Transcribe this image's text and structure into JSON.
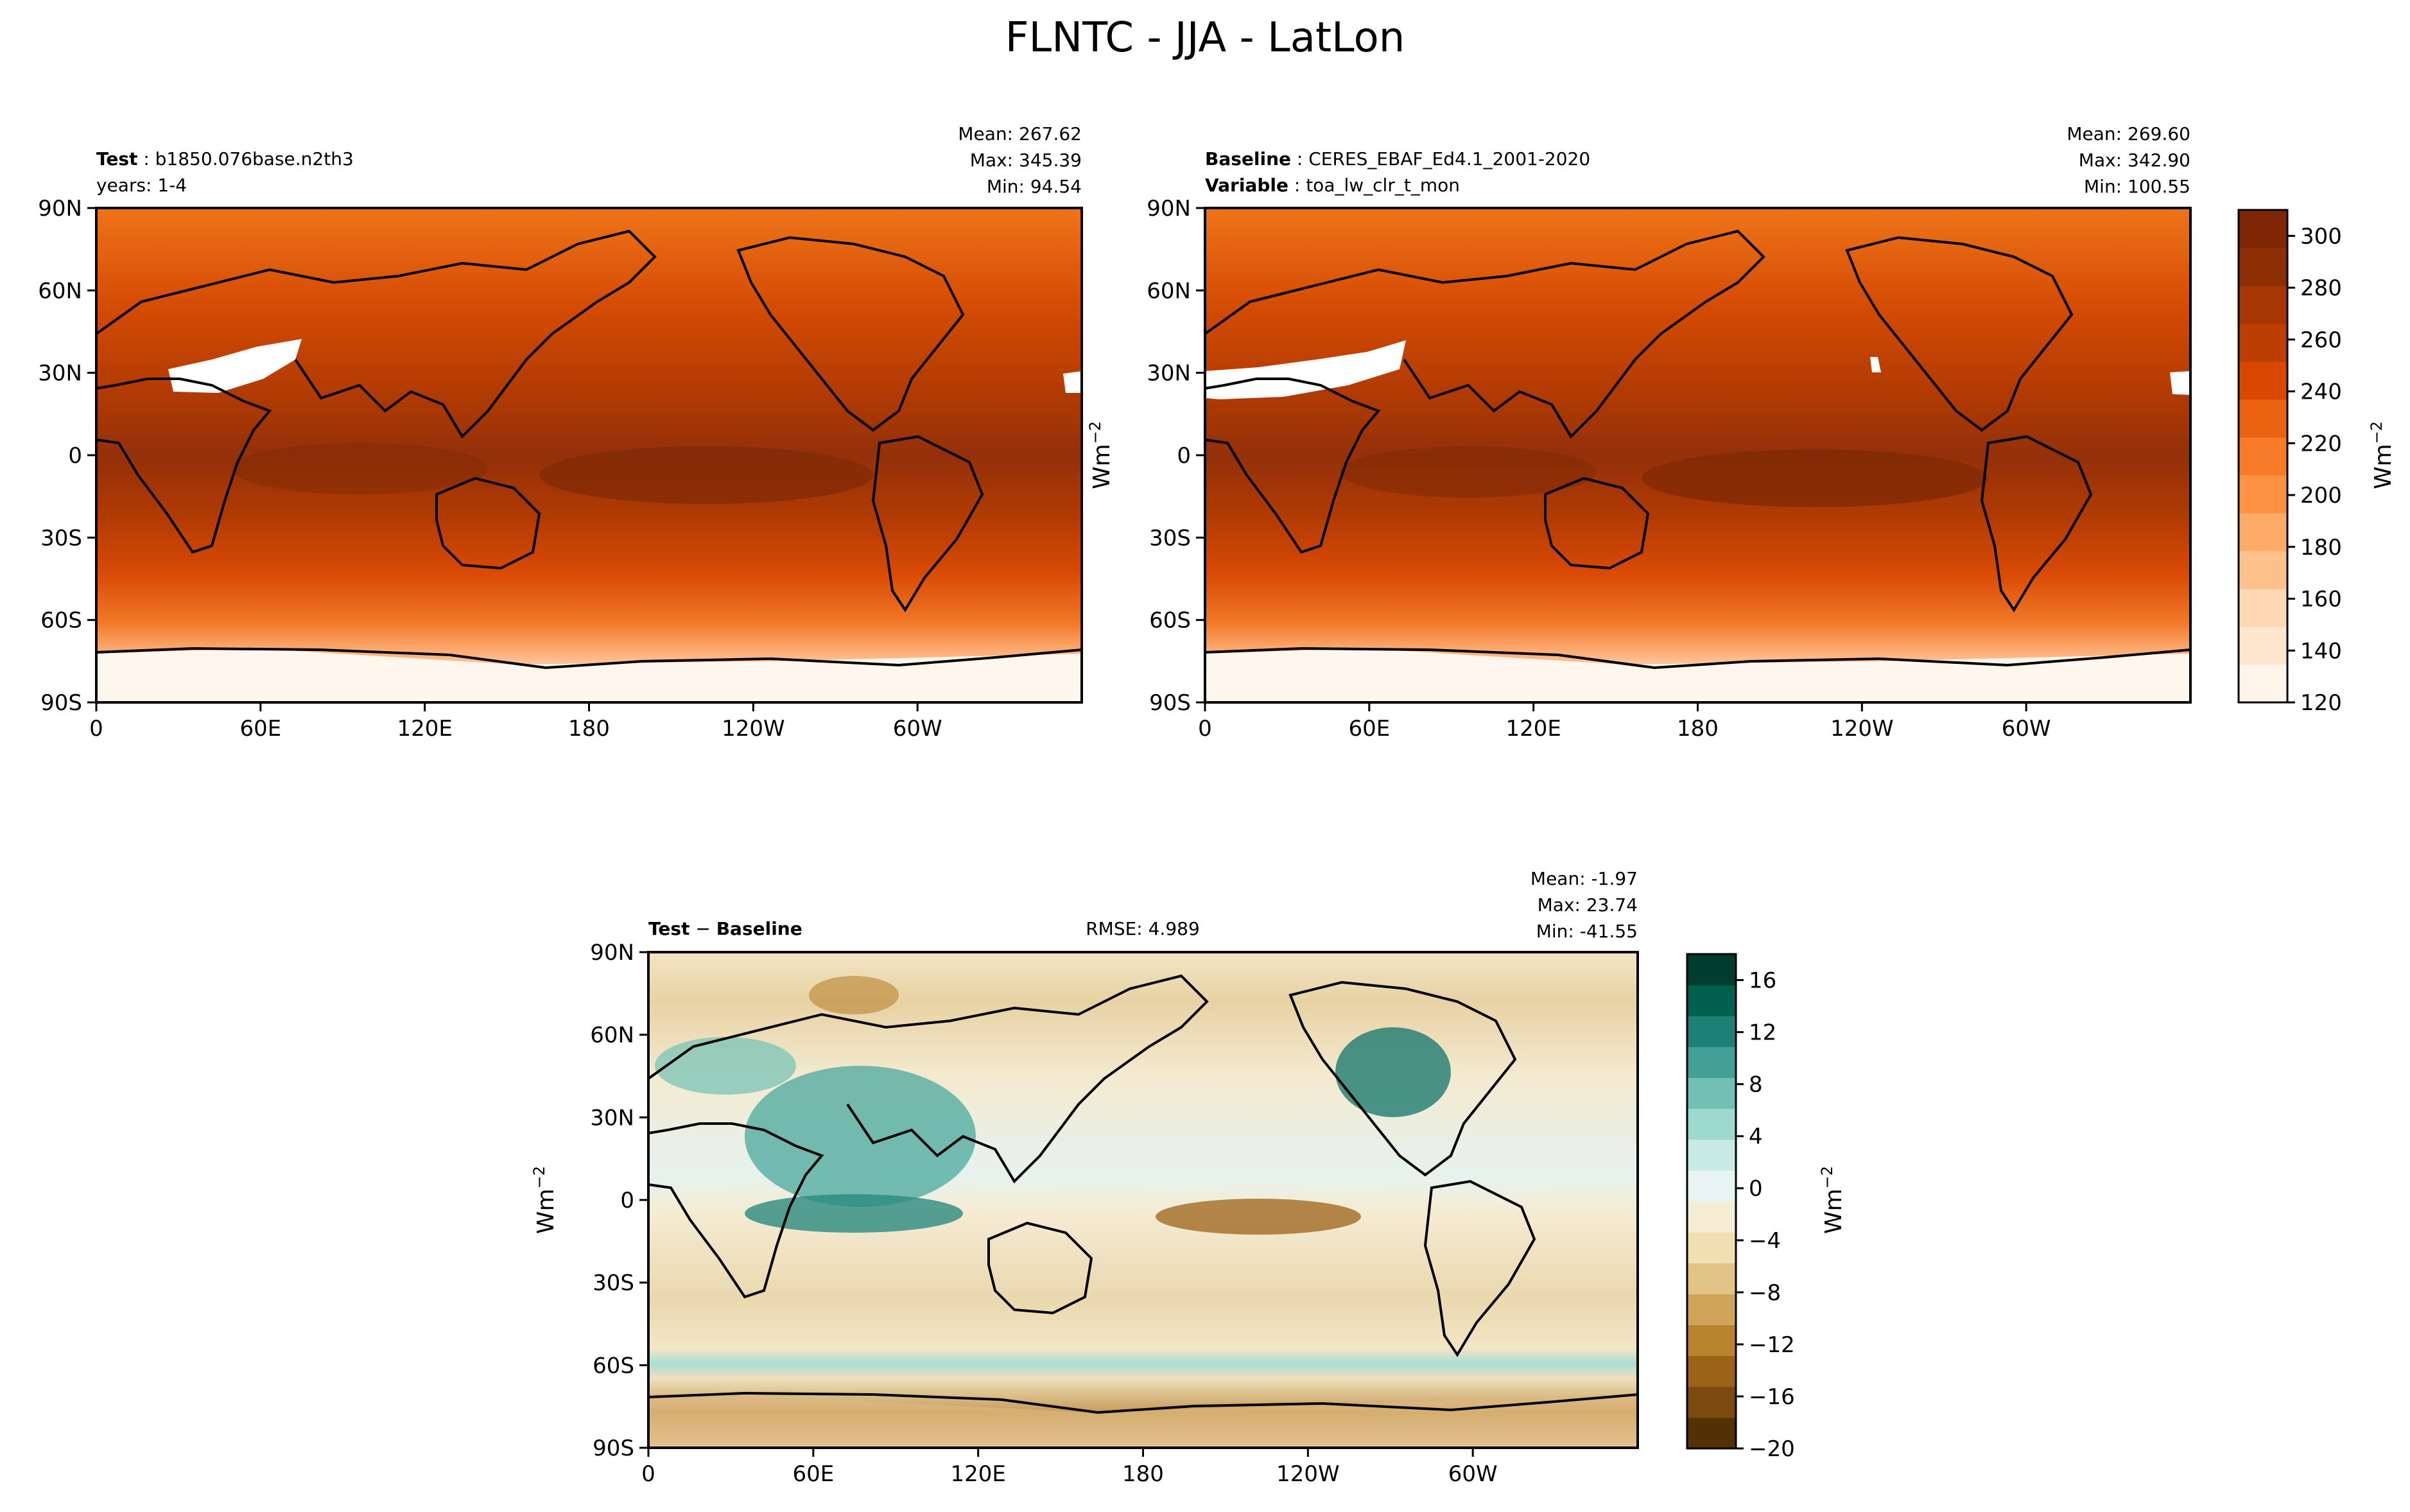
{
  "figure": {
    "title": "FLNTC - JJA - LatLon"
  },
  "colors": {
    "sequential": [
      "#fff5eb",
      "#fee6ce",
      "#fdd8b3",
      "#fdc28c",
      "#fdab67",
      "#fd9243",
      "#f77b28",
      "#eb6211",
      "#d94801",
      "#bd3e02",
      "#a63603",
      "#8c2d04",
      "#7f2704"
    ],
    "diverging": [
      "#543005",
      "#7a4b0c",
      "#9b6318",
      "#b9832e",
      "#d0a55a",
      "#e2c586",
      "#f0dfb2",
      "#f6edd5",
      "#e8f4f2",
      "#c7eae5",
      "#9ed9d0",
      "#70c0b3",
      "#42a096",
      "#1c8077",
      "#00604d",
      "#003c30"
    ]
  },
  "axes": {
    "lat_ticks": [
      "90N",
      "60N",
      "30N",
      "0",
      "30S",
      "60S",
      "90S"
    ],
    "lon_ticks": [
      "0",
      "60E",
      "120E",
      "180",
      "120W",
      "60W"
    ],
    "unit": "Wm",
    "unit_exp": "−2"
  },
  "panels": {
    "test": {
      "bold_label": "Test",
      "label_value": "b1850.076base.n2th3",
      "line2": "years: 1-4",
      "stats": [
        "Mean: 267.62",
        "Max: 345.39",
        "Min: 94.54"
      ]
    },
    "baseline": {
      "bold_label": "Baseline",
      "label_value": "CERES_EBAF_Ed4.1_2001-2020",
      "bold_label2": "Variable",
      "label_value2": "toa_lw_clr_t_mon",
      "stats": [
        "Mean: 269.60",
        "Max: 342.90",
        "Min: 100.55"
      ]
    },
    "diff": {
      "bold_label": "Test",
      "bold_label_b": "Baseline",
      "minus": "−",
      "rmse": "RMSE: 4.989",
      "stats": [
        "Mean: -1.97",
        "Max: 23.74",
        "Min: -41.55"
      ]
    }
  },
  "chart_data": [
    {
      "type": "heatmap",
      "name": "test",
      "title": "Test: b1850.076base.n2th3",
      "xlabel": "",
      "ylabel": "",
      "xlim": [
        0,
        360
      ],
      "ylim": [
        -90,
        90
      ],
      "x_ticks": [
        "0",
        "60E",
        "120E",
        "180",
        "120W",
        "60W"
      ],
      "y_ticks": [
        "90N",
        "60N",
        "30N",
        "0",
        "30S",
        "60S",
        "90S"
      ],
      "stats": {
        "mean": 267.62,
        "max": 345.39,
        "min": 94.54
      }
    },
    {
      "type": "heatmap",
      "name": "baseline",
      "title": "Baseline: CERES_EBAF_Ed4.1_2001-2020",
      "xlabel": "",
      "ylabel": "Wm−2",
      "xlim": [
        0,
        360
      ],
      "ylim": [
        -90,
        90
      ],
      "stats": {
        "mean": 269.6,
        "max": 342.9,
        "min": 100.55
      },
      "colorbar": {
        "min": 120,
        "max": 310,
        "ticks": [
          120,
          140,
          160,
          180,
          200,
          220,
          240,
          260,
          280,
          300
        ],
        "label": "Wm−2"
      }
    },
    {
      "type": "heatmap",
      "name": "difference",
      "title": "Test − Baseline",
      "xlabel": "",
      "ylabel": "Wm−2",
      "xlim": [
        0,
        360
      ],
      "ylim": [
        -90,
        90
      ],
      "rmse": 4.989,
      "stats": {
        "mean": -1.97,
        "max": 23.74,
        "min": -41.55
      },
      "colorbar": {
        "min": -20,
        "max": 18,
        "ticks": [
          -20,
          -16,
          -12,
          -8,
          -4,
          0,
          4,
          8,
          12,
          16
        ],
        "tick_labels": [
          "−20",
          "−16",
          "−12",
          "−8",
          "−4",
          "0",
          "4",
          "8",
          "12",
          "16"
        ],
        "label": "Wm−2"
      }
    }
  ]
}
